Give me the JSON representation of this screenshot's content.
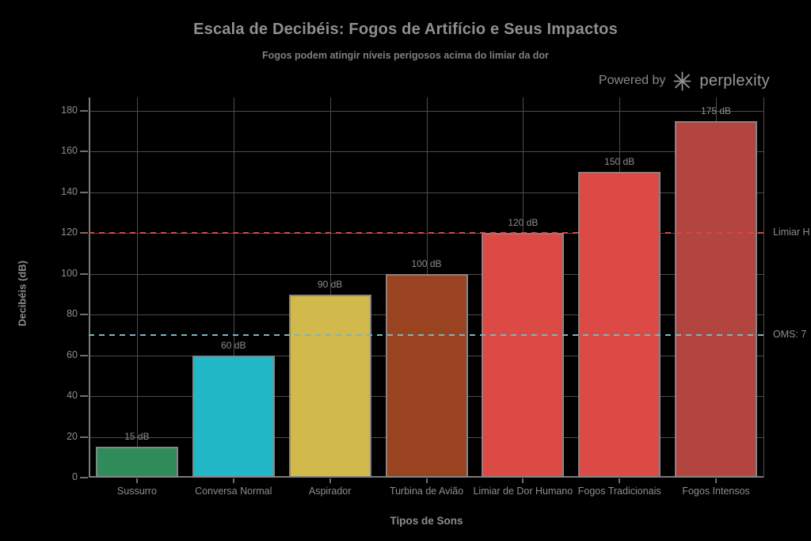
{
  "branding": {
    "powered_by": "Powered by",
    "brand": "perplexity"
  },
  "chart_data": {
    "type": "bar",
    "title": "Escala de Decibéis: Fogos de Artifício e Seus Impactos",
    "subtitle": "Fogos podem atingir níveis perigosos acima do limiar da dor",
    "xlabel": "Tipos de Sons",
    "ylabel": "Decibéis (dB)",
    "ylim": [
      0,
      180
    ],
    "yticks": [
      0,
      20,
      40,
      60,
      80,
      100,
      120,
      140,
      160,
      180
    ],
    "grid": true,
    "legend": "none",
    "background": "#000000",
    "text_color": "#8d8d8d",
    "grid_color": "#4c4c4c",
    "categories": [
      "Sussurro",
      "Conversa Normal",
      "Aspirador",
      "Turbina de Avião",
      "Limiar de Dor Humano",
      "Fogos Tradicionais",
      "Fogos Intensos"
    ],
    "values": [
      15,
      60,
      90,
      100,
      120,
      150,
      175
    ],
    "bar_labels": [
      "15 dB",
      "60 dB",
      "90 dB",
      "100 dB",
      "120 dB",
      "150 dB",
      "175 dB"
    ],
    "bar_colors": [
      "#2f8c5a",
      "#22b8c8",
      "#d1b94c",
      "#9a4321",
      "#db4a44",
      "#db4a44",
      "#b24540"
    ],
    "bar_border_color": "#858585",
    "reference_lines": [
      {
        "value": 120,
        "label": "Limiar H",
        "color": "#e04540",
        "style": "dashed"
      },
      {
        "value": 70,
        "label": "OMS: 7",
        "color": "#7db4be",
        "style": "dashed"
      }
    ]
  }
}
